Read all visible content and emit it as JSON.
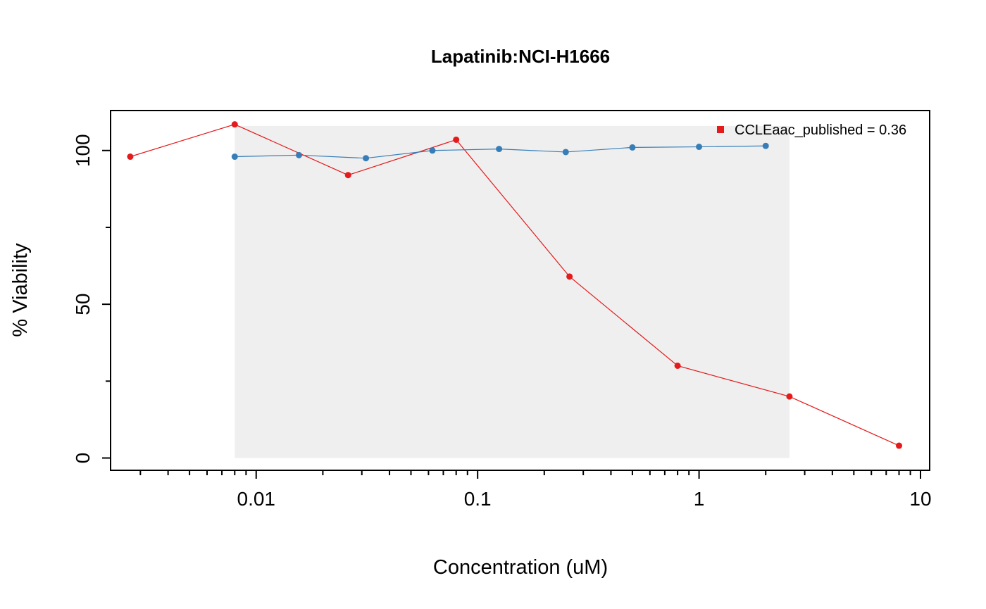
{
  "chart_data": {
    "type": "line",
    "title": "Lapatinib:NCI-H1666",
    "xlabel": "Concentration (uM)",
    "ylabel": "% Viability",
    "x_scale": "log",
    "xlim": [
      0.0022,
      11
    ],
    "ylim": [
      -4,
      113
    ],
    "x_ticks": [
      {
        "value": 0.01,
        "label": "0.01"
      },
      {
        "value": 0.1,
        "label": "0.1"
      },
      {
        "value": 1,
        "label": "1"
      },
      {
        "value": 10,
        "label": "10"
      }
    ],
    "y_ticks": [
      {
        "value": 0,
        "label": "0"
      },
      {
        "value": 50,
        "label": "50"
      },
      {
        "value": 100,
        "label": "100"
      }
    ],
    "shaded_region": {
      "x": [
        0.008,
        2.56
      ],
      "y": [
        0,
        108
      ],
      "color": "#efefef"
    },
    "series": [
      {
        "color": "#e41a1c",
        "x": [
          0.0027,
          0.008,
          0.026,
          0.08,
          0.26,
          0.8,
          2.56,
          8
        ],
        "y": [
          98,
          108.5,
          92,
          103.5,
          59,
          30,
          20,
          4
        ]
      },
      {
        "color": "#377eb8",
        "x": [
          0.008,
          0.0156,
          0.0313,
          0.0625,
          0.125,
          0.25,
          0.5,
          1,
          2
        ],
        "y": [
          98,
          98.5,
          97.5,
          100,
          100.5,
          99.5,
          101,
          101.2,
          101.5
        ]
      }
    ],
    "legend": {
      "position": "top-right",
      "entries": [
        {
          "label": "CCLEaac_published = 0.36",
          "color": "#e41a1c"
        }
      ]
    }
  }
}
